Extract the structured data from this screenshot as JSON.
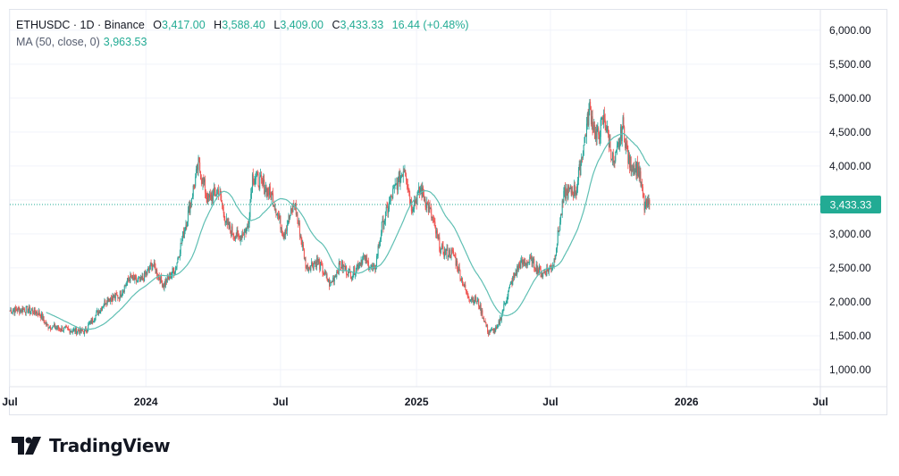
{
  "legend": {
    "symbol": "ETHUSDC · 1D · Binance",
    "open_label": "O",
    "open": "3,417.00",
    "high_label": "H",
    "high": "3,588.40",
    "low_label": "L",
    "low": "3,409.00",
    "close_label": "C",
    "close": "3,433.33",
    "change": "16.44 (+0.48%)",
    "ma_label": "MA (50, close, 0)",
    "ma_value": "3,963.53"
  },
  "colors": {
    "up": "#26a69a",
    "down": "#ef5350",
    "ma": "#5fbfb3",
    "price_tag": "#22ab94",
    "grid": "#f0f3fa"
  },
  "brand": {
    "name": "TradingView",
    "icon": "tradingview-logo-icon"
  },
  "chart_data": {
    "type": "candlestick",
    "symbol": "ETHUSDC",
    "interval": "1D",
    "exchange": "Binance",
    "y_axis": {
      "ticks": [
        1000,
        1500,
        2000,
        2500,
        3000,
        3500,
        4000,
        4500,
        5000,
        5500,
        6000
      ],
      "tick_labels": [
        "1,000.00",
        "1,500.00",
        "2,000.00",
        "2,500.00",
        "3,000.00",
        "3,500.00",
        "4,000.00",
        "4,500.00",
        "5,000.00",
        "5,500.00",
        "6,000.00"
      ],
      "range": [
        750,
        6300
      ],
      "position": "right"
    },
    "x_axis": {
      "ticks": [
        "2023-07-01",
        "2024-01-01",
        "2024-07-01",
        "2025-01-01",
        "2025-07-01",
        "2026-01-01",
        "2026-07-01"
      ],
      "tick_labels": [
        "Jul",
        "2024",
        "Jul",
        "2025",
        "Jul",
        "2026",
        "Jul"
      ],
      "range": [
        "2023-07-01",
        "2026-07-01"
      ]
    },
    "last_price": {
      "value": 3433.33,
      "label": "3,433.33"
    },
    "grid": true,
    "approx_path": [
      [
        "2023-07-01",
        1870
      ],
      [
        "2023-07-20",
        1890
      ],
      [
        "2023-08-10",
        1840
      ],
      [
        "2023-08-20",
        1650
      ],
      [
        "2023-09-10",
        1600
      ],
      [
        "2023-09-25",
        1580
      ],
      [
        "2023-10-10",
        1560
      ],
      [
        "2023-10-25",
        1800
      ],
      [
        "2023-11-10",
        2050
      ],
      [
        "2023-11-25",
        2080
      ],
      [
        "2023-12-10",
        2350
      ],
      [
        "2023-12-25",
        2300
      ],
      [
        "2024-01-10",
        2550
      ],
      [
        "2024-01-25",
        2250
      ],
      [
        "2024-02-10",
        2500
      ],
      [
        "2024-02-25",
        3200
      ],
      [
        "2024-03-12",
        4020
      ],
      [
        "2024-03-25",
        3500
      ],
      [
        "2024-04-08",
        3650
      ],
      [
        "2024-04-20",
        3100
      ],
      [
        "2024-05-05",
        2950
      ],
      [
        "2024-05-18",
        3100
      ],
      [
        "2024-05-24",
        3850
      ],
      [
        "2024-06-05",
        3750
      ],
      [
        "2024-06-20",
        3550
      ],
      [
        "2024-07-05",
        3000
      ],
      [
        "2024-07-20",
        3450
      ],
      [
        "2024-08-05",
        2500
      ],
      [
        "2024-08-20",
        2600
      ],
      [
        "2024-09-06",
        2250
      ],
      [
        "2024-09-20",
        2550
      ],
      [
        "2024-10-05",
        2400
      ],
      [
        "2024-10-20",
        2650
      ],
      [
        "2024-11-05",
        2450
      ],
      [
        "2024-11-15",
        3100
      ],
      [
        "2024-11-30",
        3600
      ],
      [
        "2024-12-16",
        4000
      ],
      [
        "2024-12-25",
        3400
      ],
      [
        "2025-01-07",
        3650
      ],
      [
        "2025-01-20",
        3300
      ],
      [
        "2025-02-03",
        2750
      ],
      [
        "2025-02-20",
        2700
      ],
      [
        "2025-03-10",
        2100
      ],
      [
        "2025-03-25",
        2000
      ],
      [
        "2025-04-08",
        1550
      ],
      [
        "2025-04-20",
        1600
      ],
      [
        "2025-05-08",
        2250
      ],
      [
        "2025-05-20",
        2550
      ],
      [
        "2025-06-05",
        2600
      ],
      [
        "2025-06-20",
        2400
      ],
      [
        "2025-07-05",
        2550
      ],
      [
        "2025-07-20",
        3600
      ],
      [
        "2025-08-05",
        3650
      ],
      [
        "2025-08-23",
        4850
      ],
      [
        "2025-09-01",
        4400
      ],
      [
        "2025-09-12",
        4700
      ],
      [
        "2025-09-25",
        4000
      ],
      [
        "2025-10-07",
        4600
      ],
      [
        "2025-10-15",
        4050
      ],
      [
        "2025-10-28",
        3950
      ],
      [
        "2025-11-05",
        3400
      ],
      [
        "2025-11-12",
        3430
      ]
    ],
    "ma": {
      "period": 50,
      "source": "close",
      "last_value": 3963.53
    }
  }
}
